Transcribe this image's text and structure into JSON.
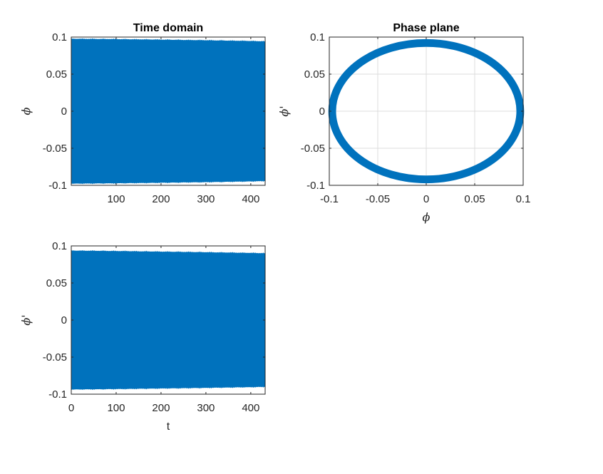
{
  "chart_data": [
    {
      "id": "time_phi",
      "type": "line",
      "title": "Time domain",
      "xlabel": "",
      "ylabel": "ϕ",
      "xlim": [
        0,
        432
      ],
      "ylim": [
        -0.1,
        0.1
      ],
      "xticks": [
        "100",
        "200",
        "300",
        "400"
      ],
      "xtick_values": [
        100,
        200,
        300,
        400
      ],
      "yticks": [
        "-0.1",
        "-0.05",
        "0",
        "0.05",
        "0.1"
      ],
      "ytick_values": [
        -0.1,
        -0.05,
        0,
        0.05,
        0.1
      ],
      "grid": false,
      "color": "#0072BD",
      "series": [
        {
          "envelope_t": [
            0,
            50,
            100,
            150,
            200,
            250,
            300,
            350,
            400,
            432
          ],
          "envelope_amplitude": [
            0.098,
            0.0978,
            0.0975,
            0.0972,
            0.0968,
            0.0964,
            0.096,
            0.0955,
            0.095,
            0.0945
          ]
        }
      ]
    },
    {
      "id": "phase_plane",
      "type": "line",
      "title": "Phase plane",
      "xlabel": "ϕ",
      "ylabel": "ϕ'",
      "xlim": [
        -0.1,
        0.1
      ],
      "ylim": [
        -0.1,
        0.1
      ],
      "xticks": [
        "-0.1",
        "-0.05",
        "0",
        "0.05",
        "0.1"
      ],
      "xtick_values": [
        -0.1,
        -0.05,
        0,
        0.05,
        0.1
      ],
      "yticks": [
        "-0.1",
        "-0.05",
        "0",
        "0.05",
        "0.1"
      ],
      "ytick_values": [
        -0.1,
        -0.05,
        0,
        0.05,
        0.1
      ],
      "grid": true,
      "color": "#0072BD",
      "series": [
        {
          "shape": "ellipse",
          "phi_amplitude": 0.097,
          "dphi_amplitude": 0.092,
          "band_halfwidth": 0.0025
        }
      ]
    },
    {
      "id": "time_dphi",
      "type": "line",
      "title": "",
      "xlabel": "t",
      "ylabel": "ϕ'",
      "xlim": [
        0,
        432
      ],
      "ylim": [
        -0.1,
        0.1
      ],
      "xticks": [
        "0",
        "100",
        "200",
        "300",
        "400"
      ],
      "xtick_values": [
        0,
        100,
        200,
        300,
        400
      ],
      "yticks": [
        "-0.1",
        "-0.05",
        "0",
        "0.05",
        "0.1"
      ],
      "ytick_values": [
        -0.1,
        -0.05,
        0,
        0.05,
        0.1
      ],
      "grid": false,
      "color": "#0072BD",
      "series": [
        {
          "envelope_t": [
            0,
            50,
            100,
            150,
            200,
            250,
            300,
            350,
            400,
            432
          ],
          "envelope_amplitude": [
            0.094,
            0.0937,
            0.0934,
            0.093,
            0.0926,
            0.0922,
            0.0918,
            0.0913,
            0.0908,
            0.0905
          ]
        }
      ]
    }
  ]
}
